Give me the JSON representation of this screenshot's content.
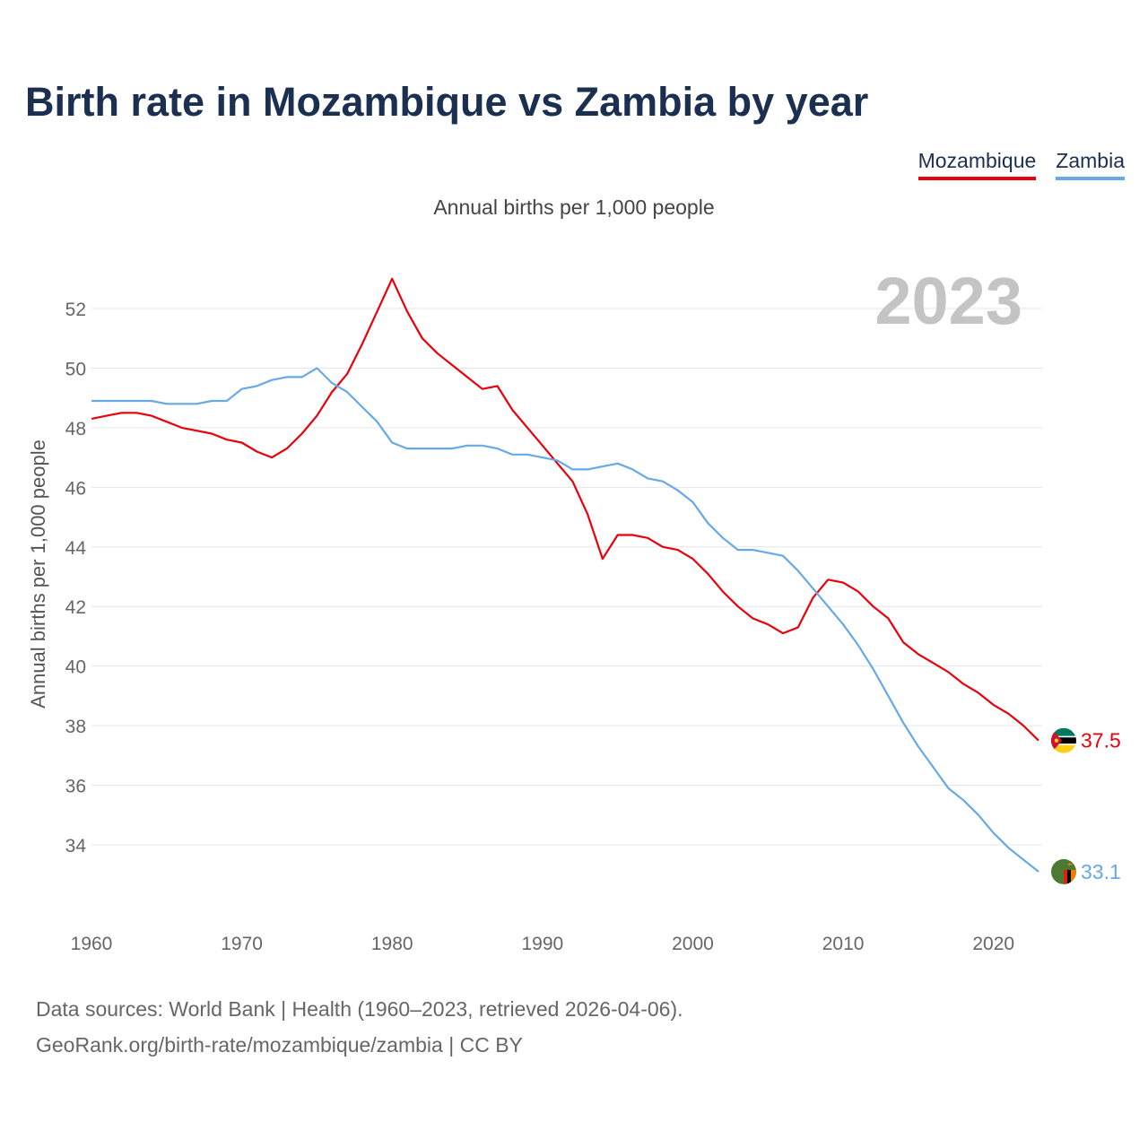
{
  "header": {
    "title": "Birth rate in Mozambique vs Zambia by year",
    "subtitle": "Annual births per 1,000 people"
  },
  "legend": {
    "mozambique": "Mozambique",
    "zambia": "Zambia"
  },
  "footer": {
    "source_line1": "Data sources: World Bank | Health (1960–2023, retrieved 2026-04-06).",
    "source_line2": "GeoRank.org/birth-rate/mozambique/zambia | CC BY"
  },
  "colors": {
    "mozambique": "#e8000b",
    "zambia": "#67a9e5",
    "title": "#1b3050",
    "grid": "#e6e6e6"
  },
  "chart_data": {
    "type": "line",
    "title": "Birth rate in Mozambique vs Zambia by year",
    "xlabel": "",
    "ylabel": "Annual births per 1,000 people",
    "year_label": "2023",
    "xlim": [
      1960,
      2023
    ],
    "ylim": [
      32,
      54.5
    ],
    "x_ticks": [
      1960,
      1970,
      1980,
      1990,
      2000,
      2010,
      2020
    ],
    "y_ticks": [
      34,
      36,
      38,
      40,
      42,
      44,
      46,
      48,
      50,
      52
    ],
    "grid": true,
    "legend_position": "top-right",
    "x": [
      1960,
      1961,
      1962,
      1963,
      1964,
      1965,
      1966,
      1967,
      1968,
      1969,
      1970,
      1971,
      1972,
      1973,
      1974,
      1975,
      1976,
      1977,
      1978,
      1979,
      1980,
      1981,
      1982,
      1983,
      1984,
      1985,
      1986,
      1987,
      1988,
      1989,
      1990,
      1991,
      1992,
      1993,
      1994,
      1995,
      1996,
      1997,
      1998,
      1999,
      2000,
      2001,
      2002,
      2003,
      2004,
      2005,
      2006,
      2007,
      2008,
      2009,
      2010,
      2011,
      2012,
      2013,
      2014,
      2015,
      2016,
      2017,
      2018,
      2019,
      2020,
      2021,
      2022,
      2023
    ],
    "series": [
      {
        "name": "Mozambique",
        "end_label": "37.5",
        "values": [
          48.3,
          48.4,
          48.5,
          48.5,
          48.4,
          48.2,
          48.0,
          47.9,
          47.8,
          47.6,
          47.5,
          47.2,
          47.0,
          47.3,
          47.8,
          48.4,
          49.2,
          49.8,
          50.8,
          51.9,
          53.0,
          51.9,
          51.0,
          50.5,
          50.1,
          49.7,
          49.3,
          49.4,
          48.6,
          48.0,
          47.4,
          46.8,
          46.2,
          45.1,
          43.6,
          44.4,
          44.4,
          44.3,
          44.0,
          43.9,
          43.6,
          43.1,
          42.5,
          42.0,
          41.6,
          41.4,
          41.1,
          41.3,
          42.3,
          42.9,
          42.8,
          42.5,
          42.0,
          41.6,
          40.8,
          40.4,
          40.1,
          39.8,
          39.4,
          39.1,
          38.7,
          38.4,
          38.0,
          37.5
        ]
      },
      {
        "name": "Zambia",
        "end_label": "33.1",
        "values": [
          48.9,
          48.9,
          48.9,
          48.9,
          48.9,
          48.8,
          48.8,
          48.8,
          48.9,
          48.9,
          49.3,
          49.4,
          49.6,
          49.7,
          49.7,
          50.0,
          49.5,
          49.2,
          48.7,
          48.2,
          47.5,
          47.3,
          47.3,
          47.3,
          47.3,
          47.4,
          47.4,
          47.3,
          47.1,
          47.1,
          47.0,
          46.9,
          46.6,
          46.6,
          46.7,
          46.8,
          46.6,
          46.3,
          46.2,
          45.9,
          45.5,
          44.8,
          44.3,
          43.9,
          43.9,
          43.8,
          43.7,
          43.2,
          42.6,
          42.0,
          41.4,
          40.7,
          39.9,
          39.0,
          38.1,
          37.3,
          36.6,
          35.9,
          35.5,
          35.0,
          34.4,
          33.9,
          33.5,
          33.1
        ]
      }
    ]
  }
}
